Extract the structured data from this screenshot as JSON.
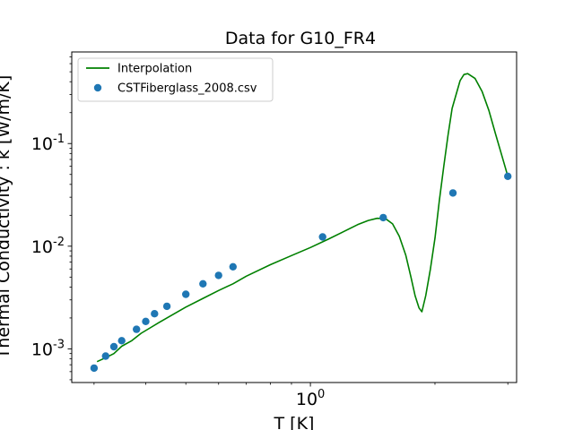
{
  "chart_data": {
    "type": "line",
    "title": "Data for G10_FR4",
    "xlabel": "T [K]",
    "ylabel": "Thermal Conductivity : k [W/m/K]",
    "xscale": "log",
    "yscale": "log",
    "xlim": [
      0.265,
      3.15
    ],
    "ylim": [
      0.00047,
      0.78
    ],
    "x_major_ticks": [
      {
        "value": 1.0,
        "label": "10^0"
      }
    ],
    "x_minor_ticks": [
      0.3,
      0.4,
      0.5,
      0.6,
      0.7,
      0.8,
      0.9,
      2.0,
      3.0
    ],
    "y_major_ticks": [
      {
        "value": 0.001,
        "label": "10^-3"
      },
      {
        "value": 0.01,
        "label": "10^-2"
      },
      {
        "value": 0.1,
        "label": "10^-1"
      }
    ],
    "legend": {
      "placement": "top-left"
    },
    "series": [
      {
        "name": "Interpolation",
        "kind": "line",
        "color": "#008000",
        "x": [
          0.305,
          0.32,
          0.335,
          0.35,
          0.37,
          0.39,
          0.41,
          0.43,
          0.45,
          0.5,
          0.55,
          0.6,
          0.65,
          0.7,
          0.8,
          0.9,
          1.0,
          1.1,
          1.2,
          1.3,
          1.38,
          1.45,
          1.52,
          1.58,
          1.64,
          1.7,
          1.75,
          1.79,
          1.83,
          1.86,
          1.9,
          1.95,
          2.0,
          2.05,
          2.1,
          2.15,
          2.2,
          2.3,
          2.35,
          2.4,
          2.5,
          2.6,
          2.7,
          2.8,
          2.9,
          2.96,
          3.0
        ],
        "y": [
          0.00075,
          0.00082,
          0.0009,
          0.00106,
          0.0012,
          0.00142,
          0.0016,
          0.0018,
          0.002,
          0.00255,
          0.0031,
          0.0037,
          0.0043,
          0.0051,
          0.0066,
          0.0081,
          0.0097,
          0.0116,
          0.0138,
          0.0162,
          0.0178,
          0.0187,
          0.0185,
          0.0165,
          0.0125,
          0.0082,
          0.005,
          0.0033,
          0.0025,
          0.0023,
          0.0033,
          0.006,
          0.012,
          0.028,
          0.06,
          0.12,
          0.22,
          0.41,
          0.47,
          0.48,
          0.43,
          0.32,
          0.21,
          0.125,
          0.077,
          0.058,
          0.048
        ]
      },
      {
        "name": "CSTFiberglass_2008.csv",
        "kind": "scatter",
        "color": "#1f77b4",
        "x": [
          0.3,
          0.32,
          0.335,
          0.35,
          0.38,
          0.4,
          0.42,
          0.45,
          0.5,
          0.55,
          0.6,
          0.65,
          1.07,
          1.5,
          2.21,
          3.0
        ],
        "y": [
          0.00065,
          0.00085,
          0.00105,
          0.0012,
          0.00155,
          0.00185,
          0.0022,
          0.0026,
          0.0034,
          0.0043,
          0.0052,
          0.0063,
          0.0123,
          0.019,
          0.033,
          0.048
        ]
      }
    ]
  }
}
